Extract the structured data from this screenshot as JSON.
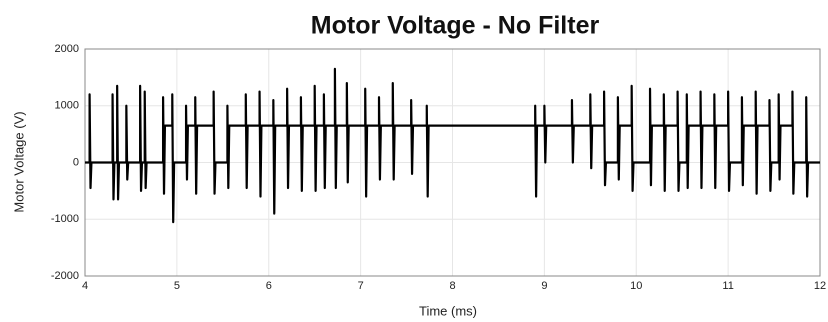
{
  "chart_data": {
    "type": "line",
    "title": "Motor Voltage - No Filter",
    "x_label": "Time (ms)",
    "y_label": "Motor Voltage (V)",
    "x": [
      4,
      4.05,
      4.05,
      4.06,
      4.07,
      4.3,
      4.3,
      4.31,
      4.32,
      4.35,
      4.35,
      4.36,
      4.37,
      4.45,
      4.45,
      4.46,
      4.47,
      4.6,
      4.6,
      4.61,
      4.62,
      4.65,
      4.65,
      4.66,
      4.67,
      4.85,
      4.85,
      4.86,
      4.87,
      4.95,
      4.95,
      4.96,
      4.97,
      5.1,
      5.1,
      5.11,
      5.12,
      5.2,
      5.2,
      5.21,
      5.22,
      5.4,
      5.4,
      5.41,
      5.42,
      5.55,
      5.55,
      5.56,
      5.57,
      5.75,
      5.75,
      5.76,
      5.77,
      5.9,
      5.9,
      5.91,
      5.92,
      6.05,
      6.05,
      6.06,
      6.07,
      6.2,
      6.2,
      6.21,
      6.22,
      6.35,
      6.35,
      6.36,
      6.37,
      6.5,
      6.5,
      6.51,
      6.52,
      6.6,
      6.6,
      6.61,
      6.62,
      6.72,
      6.72,
      6.73,
      6.74,
      6.85,
      6.85,
      6.86,
      6.87,
      7.05,
      7.05,
      7.06,
      7.07,
      7.2,
      7.2,
      7.21,
      7.22,
      7.35,
      7.35,
      7.36,
      7.37,
      7.55,
      7.55,
      7.56,
      7.57,
      7.72,
      7.72,
      7.73,
      7.74,
      8.9,
      8.9,
      8.91,
      8.92,
      9.0,
      9.0,
      9.01,
      9.02,
      9.3,
      9.3,
      9.31,
      9.32,
      9.5,
      9.5,
      9.51,
      9.52,
      9.65,
      9.65,
      9.66,
      9.67,
      9.8,
      9.8,
      9.81,
      9.82,
      9.95,
      9.95,
      9.96,
      9.97,
      10.15,
      10.15,
      10.16,
      10.17,
      10.3,
      10.3,
      10.31,
      10.32,
      10.45,
      10.45,
      10.46,
      10.47,
      10.55,
      10.55,
      10.56,
      10.57,
      10.7,
      10.7,
      10.71,
      10.72,
      10.85,
      10.85,
      10.86,
      10.87,
      11.0,
      11.0,
      11.01,
      11.02,
      11.15,
      11.15,
      11.16,
      11.17,
      11.3,
      11.3,
      11.31,
      11.32,
      11.45,
      11.45,
      11.46,
      11.47,
      11.55,
      11.55,
      11.56,
      11.57,
      11.7,
      11.7,
      11.71,
      11.72,
      11.85,
      11.85,
      11.86,
      11.87,
      12
    ],
    "series": [
      {
        "name": "Motor Voltage",
        "color": "#000000",
        "values": [
          0,
          0,
          1200,
          -450,
          0,
          0,
          1200,
          -650,
          0,
          0,
          1350,
          -650,
          0,
          0,
          1000,
          -300,
          0,
          0,
          1350,
          -500,
          0,
          0,
          1250,
          -450,
          0,
          0,
          1150,
          -550,
          650,
          650,
          1200,
          -1050,
          0,
          0,
          1000,
          -300,
          650,
          650,
          1150,
          -550,
          650,
          650,
          1250,
          -550,
          0,
          0,
          1000,
          -450,
          650,
          650,
          1200,
          -450,
          650,
          650,
          1250,
          -600,
          650,
          650,
          1100,
          -900,
          650,
          650,
          1300,
          -450,
          650,
          650,
          1150,
          -500,
          650,
          650,
          1350,
          -500,
          650,
          650,
          1200,
          -450,
          650,
          650,
          1650,
          -450,
          650,
          650,
          1400,
          -350,
          650,
          650,
          1300,
          -600,
          650,
          650,
          1150,
          -300,
          650,
          650,
          1400,
          -300,
          650,
          650,
          1100,
          -200,
          650,
          650,
          1000,
          -600,
          650,
          650,
          1000,
          -600,
          650,
          650,
          1000,
          0,
          650,
          650,
          1100,
          0,
          650,
          650,
          1200,
          -100,
          650,
          650,
          1250,
          -400,
          0,
          0,
          1150,
          -300,
          650,
          650,
          1350,
          -500,
          0,
          0,
          1300,
          -400,
          650,
          650,
          1200,
          -500,
          650,
          650,
          1250,
          -500,
          0,
          0,
          1200,
          -450,
          650,
          650,
          1250,
          -450,
          650,
          650,
          1200,
          -450,
          650,
          650,
          1250,
          -500,
          0,
          0,
          1150,
          -400,
          650,
          650,
          1250,
          -550,
          650,
          650,
          1100,
          -500,
          0,
          0,
          1200,
          -300,
          650,
          650,
          1250,
          -550,
          0,
          0,
          1150,
          -600,
          0,
          0
        ]
      }
    ],
    "xlim": [
      4,
      12
    ],
    "xticks": [
      4,
      5,
      6,
      7,
      8,
      9,
      10,
      11,
      12
    ],
    "ylim": [
      -2000,
      2000
    ],
    "yticks": [
      -2000,
      -1000,
      0,
      1000,
      2000
    ],
    "grid": true
  }
}
